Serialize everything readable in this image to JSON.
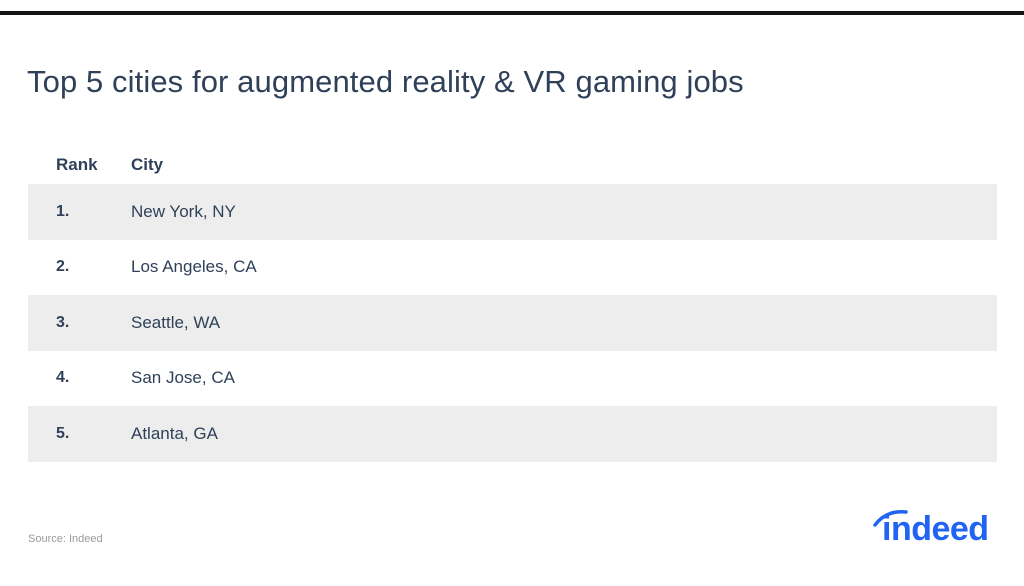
{
  "title": "Top 5 cities for augmented reality & VR gaming jobs",
  "table": {
    "headers": {
      "rank": "Rank",
      "city": "City"
    },
    "rows": [
      {
        "rank": "1.",
        "city": "New York, NY"
      },
      {
        "rank": "2.",
        "city": "Los Angeles, CA"
      },
      {
        "rank": "3.",
        "city": "Seattle, WA"
      },
      {
        "rank": "4.",
        "city": "San Jose, CA"
      },
      {
        "rank": "5.",
        "city": "Atlanta, GA"
      }
    ]
  },
  "source": "Source: Indeed",
  "logo": {
    "text": "indeed",
    "color": "#2164f3"
  },
  "colors": {
    "title": "#2f4159",
    "row_shade": "#ededed",
    "rule": "#141414"
  }
}
